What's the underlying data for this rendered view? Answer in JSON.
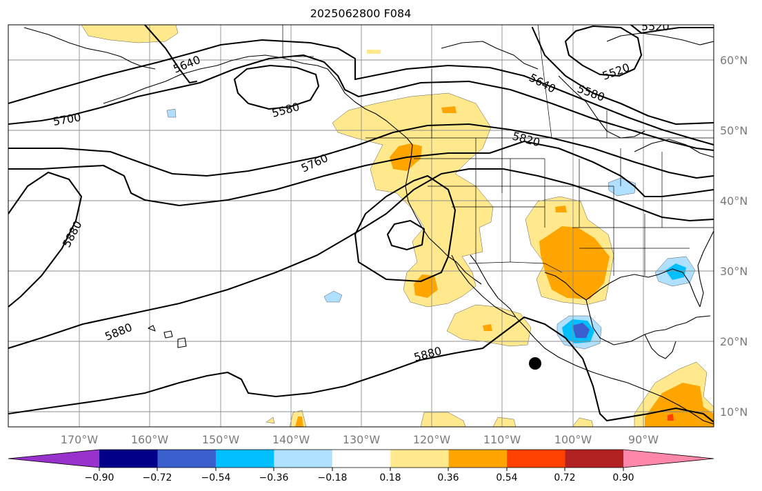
{
  "title": "2025062800 F084",
  "map": {
    "lon_ticks": [
      "170°W",
      "160°W",
      "150°W",
      "140°W",
      "130°W",
      "120°W",
      "110°W",
      "100°W",
      "90°W"
    ],
    "lat_ticks": [
      "60°N",
      "50°N",
      "40°N",
      "30°N",
      "20°N",
      "10°N"
    ],
    "contour_labels": [
      "5520",
      "5520",
      "5580",
      "5580",
      "5640",
      "5640",
      "5700",
      "5760",
      "5820",
      "5880",
      "5880",
      "5880"
    ],
    "colors": {
      "positive_shades": [
        "#ffe98c",
        "#ffa500",
        "#ff4000",
        "#b22222",
        "#ff88aa"
      ],
      "negative_shades": [
        "#b0e0ff",
        "#00bfff",
        "#3a5fcd",
        "#000088",
        "#9932cc"
      ],
      "marker": "#000000"
    }
  },
  "colorbar": {
    "tick_labels": [
      "−0.90",
      "−0.72",
      "−0.54",
      "−0.36",
      "−0.18",
      "0.18",
      "0.36",
      "0.54",
      "0.72",
      "0.90"
    ],
    "levels": [
      -0.9,
      -0.72,
      -0.54,
      -0.36,
      -0.18,
      0.18,
      0.36,
      0.54,
      0.72,
      0.9
    ],
    "colors": [
      "#9932cc",
      "#000088",
      "#3a5fcd",
      "#00bfff",
      "#b0e0ff",
      "#ffffff",
      "#ffe98c",
      "#ffa500",
      "#ff4000",
      "#b22222",
      "#ff88aa"
    ]
  }
}
